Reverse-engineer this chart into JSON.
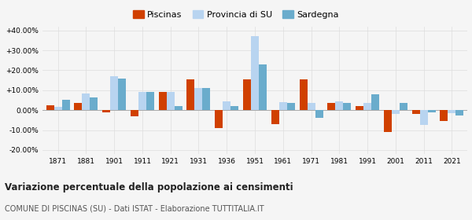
{
  "years": [
    1871,
    1881,
    1901,
    1911,
    1921,
    1931,
    1936,
    1951,
    1961,
    1971,
    1981,
    1991,
    2001,
    2011,
    2021
  ],
  "piscinas": [
    2.5,
    3.5,
    -1.0,
    -3.0,
    9.0,
    15.5,
    -9.0,
    15.5,
    -7.0,
    15.5,
    3.5,
    2.0,
    -11.0,
    -2.0,
    -5.5
  ],
  "provincia_su": [
    1.5,
    8.5,
    17.0,
    9.0,
    9.0,
    11.0,
    4.5,
    37.0,
    4.0,
    3.5,
    4.5,
    3.5,
    -2.0,
    -7.5,
    -1.5
  ],
  "sardegna": [
    5.0,
    6.5,
    16.0,
    9.0,
    2.0,
    11.0,
    2.0,
    23.0,
    3.5,
    -4.0,
    3.5,
    8.0,
    3.5,
    -1.0,
    -2.5
  ],
  "color_piscinas": "#d04000",
  "color_provincia": "#b8d4f0",
  "color_sardegna": "#6aaccc",
  "title1": "Variazione percentuale della popolazione ai censimenti",
  "title2": "COMUNE DI PISCINAS (SU) - Dati ISTAT - Elaborazione TUTTITALIA.IT",
  "ylim": [
    -22,
    42
  ],
  "yticks": [
    -20,
    -10,
    0,
    10,
    20,
    30,
    40
  ],
  "ytick_labels": [
    "-20.00%",
    "-10.00%",
    "0.00%",
    "+10.00%",
    "+20.00%",
    "+30.00%",
    "+40.00%"
  ],
  "bg_color": "#f5f5f5",
  "grid_color": "#dddddd"
}
